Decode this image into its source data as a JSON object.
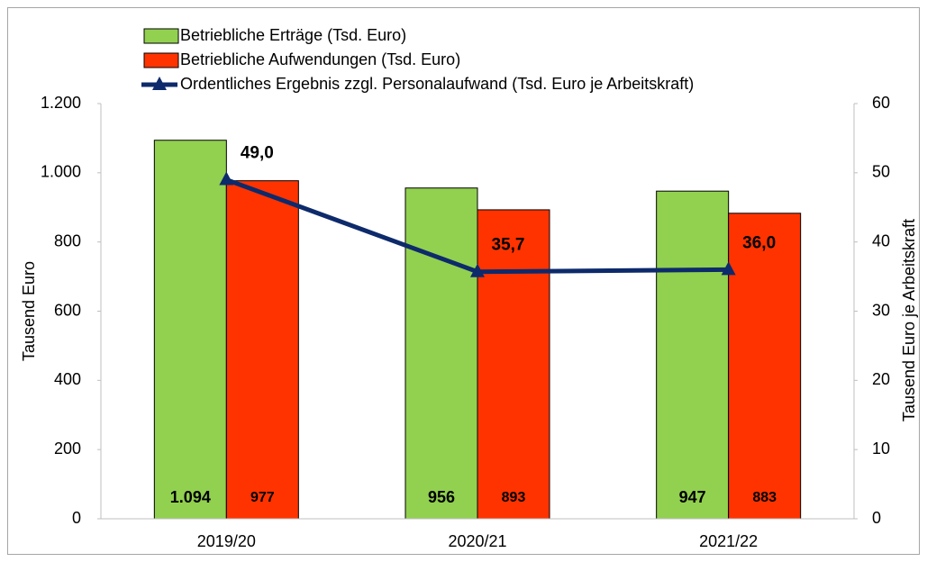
{
  "chart_data": {
    "type": "bar",
    "categories": [
      "2019/20",
      "2020/21",
      "2021/22"
    ],
    "ylabel": "Tausend Euro",
    "y2label": "Tausend Euro je Arbeitskraft",
    "ylim": [
      0,
      1200
    ],
    "yticks": [
      0,
      200,
      400,
      600,
      800,
      {
        "value": 1000,
        "label": "1.000"
      },
      {
        "value": 1200,
        "label": "1.200"
      }
    ],
    "y2lim": [
      0,
      60
    ],
    "y2ticks": [
      0,
      10,
      20,
      30,
      40,
      50,
      60
    ],
    "legend": "top",
    "grid": false,
    "series": [
      {
        "name": "Betriebliche Erträge (Tsd. Euro)",
        "color": "#92d050",
        "values": [
          1094,
          956,
          947
        ],
        "value_labels": [
          "1.094",
          "956",
          "947"
        ]
      },
      {
        "name": "Betriebliche Aufwendungen (Tsd. Euro)",
        "color": "#ff3300",
        "values": [
          977,
          893,
          883
        ],
        "value_labels": [
          "977",
          "893",
          "883"
        ]
      },
      {
        "name": "Ordentliches Ergebnis zzgl. Personalaufwand (Tsd. Euro je Arbeitskraft)",
        "type": "line",
        "axis": "y2",
        "color": "#0d2a6b",
        "values": [
          49.0,
          35.7,
          36.0
        ],
        "value_labels": [
          "49,0",
          "35,7",
          "36,0"
        ]
      }
    ]
  }
}
